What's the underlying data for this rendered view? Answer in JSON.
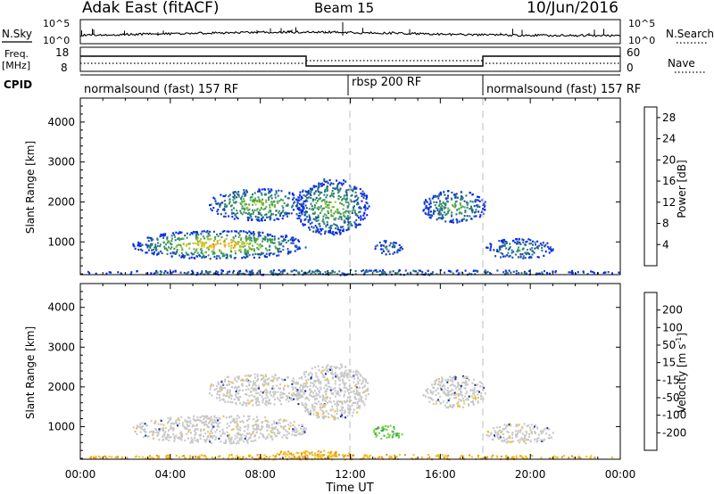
{
  "header": {
    "station": "Adak East (fitACF)",
    "beam": "Beam 15",
    "date": "10/Jun/2016"
  },
  "nsky_panel": {
    "left_label": "N.Sky",
    "right_label": "N.Search",
    "left_ticks": [
      "10^5",
      "10^0"
    ],
    "right_ticks": [
      "10^5",
      "10^0"
    ]
  },
  "freq_panel": {
    "left_label_1": "Freq.",
    "left_label_2": "[MHz]",
    "right_label": "Nave",
    "left_ticks": [
      "18",
      "8"
    ],
    "right_ticks": [
      "60",
      "0"
    ]
  },
  "cpid_panel": {
    "label": "CPID",
    "segments": [
      {
        "name": "normalsound (fast) 157 RF",
        "start": 0,
        "end": 12
      },
      {
        "name": "rbsp 200 RF",
        "start": 12,
        "end": 18
      },
      {
        "name": "normalsound (fast) 157 RF",
        "start": 18,
        "end": 24
      }
    ]
  },
  "chart_data": [
    {
      "type": "heatmap",
      "title": "",
      "xlabel": "Time UT",
      "ylabel": "Slant Range [km]",
      "xlim": [
        0,
        24
      ],
      "ylim": [
        180,
        4600
      ],
      "yticks": [
        1000,
        2000,
        3000,
        4000
      ],
      "xtick_labels": [
        "00:00",
        "04:00",
        "08:00",
        "12:00",
        "16:00",
        "20:00",
        "00:00"
      ],
      "colorbar": {
        "label": "Power [dB]",
        "ticks": [
          "28",
          "24",
          "20",
          "16",
          "12",
          "8",
          "4"
        ],
        "tick_values": [
          28,
          24,
          20,
          16,
          12,
          8,
          4
        ],
        "range": [
          0,
          30
        ],
        "colors": [
          "#0022ff",
          "#1d4fa8",
          "#2e7d7d",
          "#3f9a5c",
          "#62b04a",
          "#a9c43a",
          "#e8c41e",
          "#f39b14",
          "#ee6a10",
          "#e0301b"
        ]
      },
      "echo_regions": [
        {
          "start_hour": 2.3,
          "end_hour": 10.0,
          "min_range_km": 600,
          "max_range_km": 1300,
          "peak_value": 22
        },
        {
          "start_hour": 5.7,
          "end_hour": 10.0,
          "min_range_km": 1550,
          "max_range_km": 2350,
          "peak_value": 16
        },
        {
          "start_hour": 9.5,
          "end_hour": 12.8,
          "min_range_km": 1200,
          "max_range_km": 2600,
          "peak_value": 14
        },
        {
          "start_hour": 15.2,
          "end_hour": 18.0,
          "min_range_km": 1500,
          "max_range_km": 2300,
          "peak_value": 12
        },
        {
          "start_hour": 18.0,
          "end_hour": 21.0,
          "min_range_km": 600,
          "max_range_km": 1100,
          "peak_value": 8
        },
        {
          "start_hour": 13.0,
          "end_hour": 14.3,
          "min_range_km": 700,
          "max_range_km": 1050,
          "peak_value": 6
        },
        {
          "start_hour": 0.0,
          "end_hour": 24.0,
          "min_range_km": 190,
          "max_range_km": 320,
          "peak_value": 8
        }
      ]
    },
    {
      "type": "heatmap",
      "title": "",
      "xlabel": "Time UT",
      "ylabel": "Slant Range [km]",
      "xlim": [
        0,
        24
      ],
      "ylim": [
        180,
        4600
      ],
      "yticks": [
        1000,
        2000,
        3000,
        4000
      ],
      "xtick_labels": [
        "00:00",
        "04:00",
        "08:00",
        "12:00",
        "16:00",
        "20:00",
        "00:00"
      ],
      "colorbar": {
        "label": "Velocity [m s",
        "label_exponent": "-1",
        "label_close": "]",
        "ticks": [
          "200",
          "100",
          "50",
          "15",
          "-15",
          "-50",
          "-100",
          "-200"
        ],
        "tick_values": [
          200,
          100,
          50,
          15,
          -15,
          -50,
          -100,
          -200
        ],
        "colors": [
          "#1b2fa8",
          "#2f6f7d",
          "#4aa05a",
          "#6fd24a",
          "#c8c8c8",
          "#f2c31e",
          "#f39314",
          "#ee5a10",
          "#e0101b"
        ]
      },
      "echo_regions": [
        {
          "start_hour": 2.3,
          "end_hour": 10.0,
          "min_range_km": 600,
          "max_range_km": 1300,
          "velocity": 0
        },
        {
          "start_hour": 5.7,
          "end_hour": 10.0,
          "min_range_km": 1550,
          "max_range_km": 2350,
          "velocity": 0
        },
        {
          "start_hour": 9.5,
          "end_hour": 12.8,
          "min_range_km": 1200,
          "max_range_km": 2600,
          "velocity": 0
        },
        {
          "start_hour": 15.2,
          "end_hour": 18.0,
          "min_range_km": 1500,
          "max_range_km": 2300,
          "velocity": 0
        },
        {
          "start_hour": 18.0,
          "end_hour": 21.0,
          "min_range_km": 600,
          "max_range_km": 1100,
          "velocity": 0
        },
        {
          "start_hour": 13.0,
          "end_hour": 14.3,
          "min_range_km": 700,
          "max_range_km": 1050,
          "velocity": 60
        },
        {
          "start_hour": 8.5,
          "end_hour": 12.0,
          "min_range_km": 280,
          "max_range_km": 420,
          "velocity": -40
        },
        {
          "start_hour": 0.0,
          "end_hour": 24.0,
          "min_range_km": 190,
          "max_range_km": 320,
          "velocity": -40
        }
      ]
    }
  ]
}
